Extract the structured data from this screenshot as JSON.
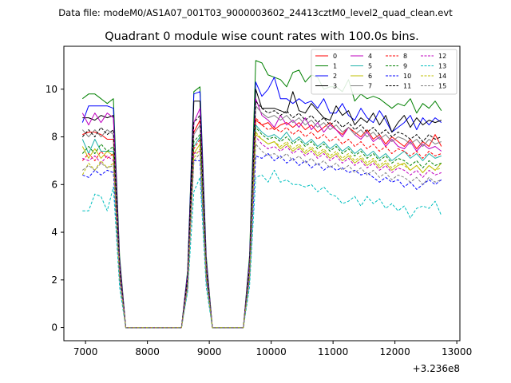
{
  "chart_data": {
    "type": "line",
    "suptitle": "Data file: modeM0/AS1A07_001T03_9000003602_24413cztM0_level2_quad_clean.evt",
    "title": "Quadrant 0 module wise count rates with 100.0s bins.",
    "xlabel": "",
    "ylabel": "",
    "x_offset_label": "+3.236e8",
    "xlim": [
      6650,
      13050
    ],
    "ylim": [
      -0.55,
      11.8
    ],
    "xticks": [
      7000,
      8000,
      9000,
      10000,
      11000,
      12000,
      13000
    ],
    "xtick_labels": [
      "7000",
      "8000",
      "9000",
      "10000",
      "11000",
      "12000",
      "13000"
    ],
    "yticks": [
      0,
      2,
      4,
      6,
      8,
      10
    ],
    "ytick_labels": [
      "0",
      "2",
      "4",
      "6",
      "8",
      "10"
    ],
    "grid": false,
    "legend_position": "top-right",
    "legend_columns": 4,
    "x": [
      6950,
      7050,
      7150,
      7250,
      7350,
      7450,
      7550,
      7650,
      8550,
      8650,
      8750,
      8850,
      8950,
      9050,
      9550,
      9650,
      9750,
      9850,
      9950,
      10050,
      10150,
      10250,
      10350,
      10450,
      10550,
      10650,
      10750,
      10850,
      10950,
      11050,
      11150,
      11250,
      11350,
      11450,
      11550,
      11650,
      11750,
      11850,
      11950,
      12050,
      12150,
      12250,
      12350,
      12450,
      12550,
      12650,
      12750
    ],
    "series": [
      {
        "name": "0",
        "color": "#ff0000",
        "dash": "solid",
        "values": [
          8.1,
          8.2,
          8.2,
          8.1,
          7.9,
          7.9,
          2.5,
          0.0,
          0.0,
          2.0,
          8.2,
          8.7,
          2.5,
          0.0,
          0.0,
          2.5,
          8.7,
          8.5,
          8.6,
          8.3,
          8.5,
          8.6,
          8.4,
          8.6,
          8.3,
          8.5,
          8.2,
          8.4,
          8.6,
          8.3,
          8.1,
          8.4,
          8.2,
          8.0,
          8.3,
          7.9,
          8.1,
          7.7,
          8.0,
          7.8,
          7.6,
          7.9,
          7.5,
          7.8,
          7.6,
          8.1,
          7.6
        ]
      },
      {
        "name": "1",
        "color": "#008000",
        "dash": "solid",
        "values": [
          9.6,
          9.8,
          9.8,
          9.6,
          9.4,
          9.6,
          3.0,
          0.0,
          0.0,
          2.4,
          9.9,
          10.1,
          3.0,
          0.0,
          0.0,
          3.0,
          11.2,
          11.1,
          10.6,
          10.5,
          10.4,
          10.1,
          10.7,
          10.8,
          10.3,
          10.6,
          10.5,
          10.0,
          10.1,
          10.1,
          9.9,
          10.4,
          9.5,
          9.8,
          9.6,
          9.7,
          9.6,
          9.4,
          9.2,
          9.4,
          9.3,
          9.6,
          9.0,
          9.4,
          9.2,
          9.5,
          9.1
        ]
      },
      {
        "name": "2",
        "color": "#0000ff",
        "dash": "solid",
        "values": [
          8.6,
          9.3,
          9.3,
          9.3,
          9.3,
          9.2,
          2.8,
          0.0,
          0.0,
          2.3,
          9.8,
          9.9,
          2.8,
          0.0,
          0.0,
          2.8,
          10.3,
          9.7,
          10.0,
          10.5,
          9.6,
          9.6,
          9.4,
          9.6,
          9.4,
          9.5,
          9.2,
          9.6,
          9.0,
          9.0,
          9.4,
          8.9,
          8.7,
          9.2,
          8.8,
          8.6,
          9.1,
          8.7,
          8.2,
          8.4,
          8.6,
          8.9,
          8.3,
          8.8,
          8.5,
          8.8,
          8.6
        ]
      },
      {
        "name": "3",
        "color": "#000000",
        "dash": "solid",
        "values": [
          8.8,
          8.8,
          8.7,
          8.9,
          8.8,
          8.9,
          2.7,
          0.0,
          0.0,
          2.2,
          9.5,
          9.5,
          2.7,
          0.0,
          0.0,
          2.7,
          10.0,
          9.2,
          9.2,
          9.2,
          9.1,
          9.0,
          9.9,
          9.1,
          9.0,
          9.4,
          9.1,
          8.8,
          8.7,
          9.3,
          8.9,
          9.1,
          8.5,
          8.8,
          8.6,
          9.0,
          8.5,
          8.9,
          8.2,
          8.6,
          8.9,
          8.4,
          8.8,
          8.5,
          8.7,
          8.6,
          8.7
        ]
      },
      {
        "name": "4",
        "color": "#bf00bf",
        "dash": "solid",
        "values": [
          9.0,
          8.5,
          9.0,
          8.6,
          9.0,
          8.8,
          2.7,
          0.0,
          0.0,
          2.2,
          8.6,
          9.2,
          2.7,
          0.0,
          0.0,
          2.7,
          9.6,
          8.9,
          8.7,
          8.4,
          8.9,
          8.5,
          8.7,
          8.4,
          8.8,
          8.3,
          8.6,
          8.2,
          8.5,
          8.3,
          8.0,
          8.4,
          8.1,
          7.9,
          8.2,
          7.8,
          8.0,
          7.6,
          7.9,
          7.6,
          7.5,
          7.8,
          7.4,
          7.7,
          7.5,
          7.6,
          7.4
        ]
      },
      {
        "name": "5",
        "color": "#20b2aa",
        "dash": "solid",
        "values": [
          7.9,
          7.3,
          7.9,
          7.4,
          7.4,
          7.4,
          2.3,
          0.0,
          0.0,
          1.9,
          7.6,
          8.0,
          2.3,
          0.0,
          0.0,
          2.3,
          8.5,
          8.2,
          8.0,
          8.1,
          7.9,
          8.2,
          7.8,
          8.0,
          7.7,
          7.9,
          7.6,
          7.8,
          7.5,
          7.7,
          7.4,
          7.6,
          7.3,
          7.5,
          7.2,
          7.4,
          7.1,
          7.3,
          7.0,
          7.2,
          7.4,
          7.1,
          7.3,
          7.0,
          7.3,
          7.1,
          7.2
        ]
      },
      {
        "name": "6",
        "color": "#bfbf00",
        "dash": "solid",
        "values": [
          7.6,
          7.1,
          7.5,
          7.1,
          7.4,
          7.2,
          2.2,
          0.0,
          0.0,
          1.8,
          7.3,
          7.7,
          2.2,
          0.0,
          0.0,
          2.2,
          8.1,
          7.9,
          7.7,
          7.8,
          7.5,
          7.7,
          7.4,
          7.6,
          7.3,
          7.5,
          7.2,
          7.4,
          7.1,
          7.3,
          7.0,
          7.2,
          6.9,
          7.1,
          6.8,
          7.0,
          6.7,
          6.9,
          6.6,
          6.8,
          6.9,
          6.6,
          6.8,
          6.5,
          6.8,
          6.6,
          6.9
        ]
      },
      {
        "name": "7",
        "color": "#808080",
        "dash": "solid",
        "values": [
          8.3,
          8.0,
          8.3,
          8.0,
          8.3,
          8.1,
          2.5,
          0.0,
          0.0,
          2.0,
          8.1,
          8.5,
          2.5,
          0.0,
          0.0,
          2.5,
          9.3,
          9.0,
          8.8,
          8.9,
          8.7,
          8.9,
          8.6,
          8.8,
          8.5,
          8.7,
          8.4,
          8.6,
          8.3,
          8.5,
          8.2,
          8.4,
          8.1,
          8.3,
          8.0,
          8.2,
          7.9,
          8.1,
          7.8,
          8.0,
          7.9,
          7.7,
          7.9,
          7.6,
          7.9,
          7.7,
          7.8
        ]
      },
      {
        "name": "8",
        "color": "#ff0000",
        "dash": "dashed",
        "values": [
          7.0,
          7.3,
          7.0,
          7.4,
          7.1,
          7.3,
          2.2,
          0.0,
          0.0,
          1.8,
          7.5,
          7.9,
          2.2,
          0.0,
          0.0,
          2.2,
          8.8,
          8.5,
          8.3,
          8.4,
          8.2,
          8.4,
          8.1,
          8.3,
          8.0,
          8.2,
          7.9,
          8.1,
          7.8,
          8.0,
          7.7,
          7.9,
          7.6,
          7.8,
          7.5,
          7.7,
          7.4,
          7.6,
          7.3,
          7.5,
          7.4,
          7.2,
          7.4,
          7.1,
          7.4,
          7.2,
          7.3
        ]
      },
      {
        "name": "9",
        "color": "#008000",
        "dash": "dashed",
        "values": [
          7.3,
          7.6,
          7.3,
          7.7,
          7.4,
          7.6,
          2.3,
          0.0,
          0.0,
          1.9,
          7.8,
          8.1,
          2.3,
          0.0,
          0.0,
          2.3,
          8.4,
          8.1,
          7.9,
          8.0,
          7.8,
          8.0,
          7.7,
          7.9,
          7.6,
          7.8,
          7.5,
          7.7,
          7.4,
          7.6,
          7.3,
          7.5,
          7.2,
          7.4,
          7.1,
          7.3,
          7.0,
          7.2,
          6.9,
          7.1,
          7.0,
          6.8,
          7.0,
          6.7,
          7.0,
          6.8,
          6.9
        ]
      },
      {
        "name": "10",
        "color": "#0000ff",
        "dash": "dashed",
        "values": [
          6.4,
          6.3,
          6.6,
          6.4,
          6.6,
          6.5,
          2.0,
          0.0,
          0.0,
          1.6,
          7.0,
          7.0,
          2.0,
          0.0,
          0.0,
          2.0,
          7.2,
          7.1,
          7.3,
          7.0,
          7.2,
          6.9,
          7.1,
          6.8,
          7.0,
          6.7,
          6.9,
          6.6,
          6.8,
          6.6,
          6.7,
          6.5,
          6.6,
          6.4,
          6.5,
          6.3,
          6.1,
          6.3,
          6.1,
          6.2,
          5.9,
          6.1,
          5.8,
          6.0,
          6.2,
          6.0,
          6.2
        ]
      },
      {
        "name": "11",
        "color": "#000000",
        "dash": "dashed",
        "values": [
          8.0,
          8.3,
          8.0,
          8.4,
          8.1,
          8.3,
          2.5,
          0.0,
          0.0,
          2.1,
          8.6,
          8.9,
          2.5,
          0.0,
          0.0,
          2.5,
          9.5,
          9.2,
          9.0,
          9.1,
          8.9,
          9.1,
          8.8,
          9.0,
          8.7,
          8.9,
          8.6,
          8.8,
          8.5,
          8.7,
          8.4,
          8.6,
          8.3,
          8.5,
          8.2,
          8.4,
          8.1,
          8.3,
          8.0,
          8.2,
          8.1,
          7.9,
          8.1,
          7.8,
          8.1,
          7.9,
          8.0
        ]
      },
      {
        "name": "12",
        "color": "#bf00bf",
        "dash": "dashed",
        "values": [
          7.1,
          7.0,
          7.2,
          6.9,
          7.2,
          7.0,
          2.2,
          0.0,
          0.0,
          1.8,
          7.3,
          7.4,
          2.2,
          0.0,
          0.0,
          2.2,
          8.0,
          7.7,
          7.5,
          7.6,
          7.4,
          7.6,
          7.3,
          7.5,
          7.2,
          7.4,
          7.1,
          7.3,
          7.0,
          7.2,
          6.9,
          7.1,
          6.8,
          7.0,
          6.7,
          6.9,
          6.6,
          6.8,
          6.5,
          6.7,
          6.6,
          6.4,
          6.6,
          6.3,
          6.6,
          6.4,
          6.5
        ]
      },
      {
        "name": "13",
        "color": "#00bfbf",
        "dash": "dashed",
        "values": [
          4.9,
          4.9,
          5.6,
          5.5,
          4.9,
          5.9,
          1.7,
          0.0,
          0.0,
          1.5,
          5.7,
          6.3,
          1.7,
          0.0,
          0.0,
          1.7,
          6.3,
          6.4,
          6.1,
          6.6,
          6.1,
          6.2,
          6.0,
          6.0,
          5.9,
          6.0,
          5.7,
          5.9,
          5.6,
          5.5,
          5.2,
          5.3,
          5.5,
          5.1,
          5.5,
          5.2,
          5.4,
          5.0,
          5.2,
          4.9,
          5.1,
          4.6,
          5.0,
          5.1,
          5.0,
          5.3,
          4.7
        ]
      },
      {
        "name": "14",
        "color": "#bfbf00",
        "dash": "dashed",
        "values": [
          6.4,
          6.9,
          6.6,
          7.0,
          6.7,
          6.9,
          2.1,
          0.0,
          0.0,
          1.7,
          7.1,
          7.5,
          2.1,
          0.0,
          0.0,
          2.1,
          8.2,
          7.9,
          7.7,
          7.8,
          7.6,
          7.8,
          7.5,
          7.7,
          7.4,
          7.6,
          7.3,
          7.5,
          7.2,
          7.4,
          7.1,
          7.3,
          7.0,
          7.2,
          6.9,
          7.1,
          6.8,
          7.0,
          6.7,
          6.9,
          6.8,
          6.6,
          6.8,
          6.5,
          6.8,
          6.6,
          6.7
        ]
      },
      {
        "name": "15",
        "color": "#808080",
        "dash": "dashed",
        "values": [
          6.6,
          6.8,
          6.6,
          6.9,
          6.7,
          6.8,
          2.1,
          0.0,
          0.0,
          1.7,
          7.0,
          7.3,
          2.1,
          0.0,
          0.0,
          2.1,
          7.7,
          7.4,
          7.2,
          7.3,
          7.1,
          7.3,
          7.0,
          7.2,
          6.9,
          7.1,
          6.8,
          7.0,
          6.7,
          6.9,
          6.6,
          6.8,
          6.5,
          6.7,
          6.4,
          6.6,
          6.3,
          6.5,
          6.2,
          6.4,
          6.3,
          6.1,
          6.3,
          6.0,
          6.3,
          6.1,
          6.2
        ]
      }
    ]
  }
}
